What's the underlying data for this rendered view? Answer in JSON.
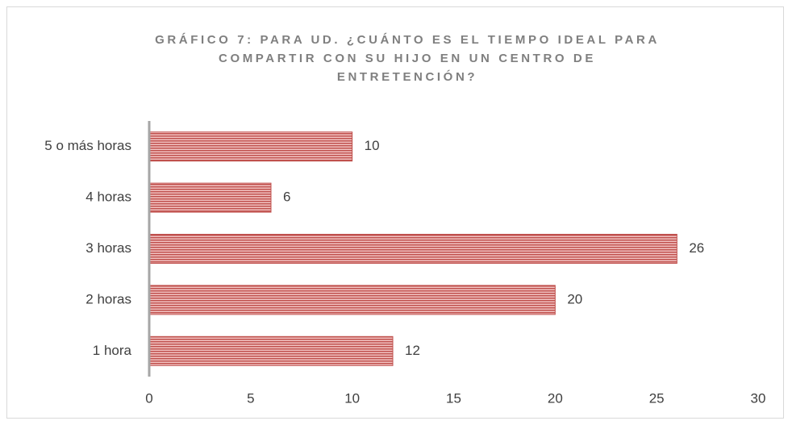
{
  "chart_data": {
    "type": "barh",
    "title": "GRÁFICO 7: PARA UD. ¿CUÁNTO ES EL TIEMPO IDEAL PARA COMPARTIR CON SU HIJO EN UN CENTRO DE ENTRETENCIÓN?",
    "categories": [
      "5 o más horas",
      "4 horas",
      "3 horas",
      "2 horas",
      "1 hora"
    ],
    "values": [
      10,
      6,
      26,
      20,
      12
    ],
    "color": "#c0504d",
    "xlim": [
      0,
      30
    ],
    "xticks": [
      0,
      5,
      10,
      15,
      20,
      25,
      30
    ],
    "grid": false
  }
}
